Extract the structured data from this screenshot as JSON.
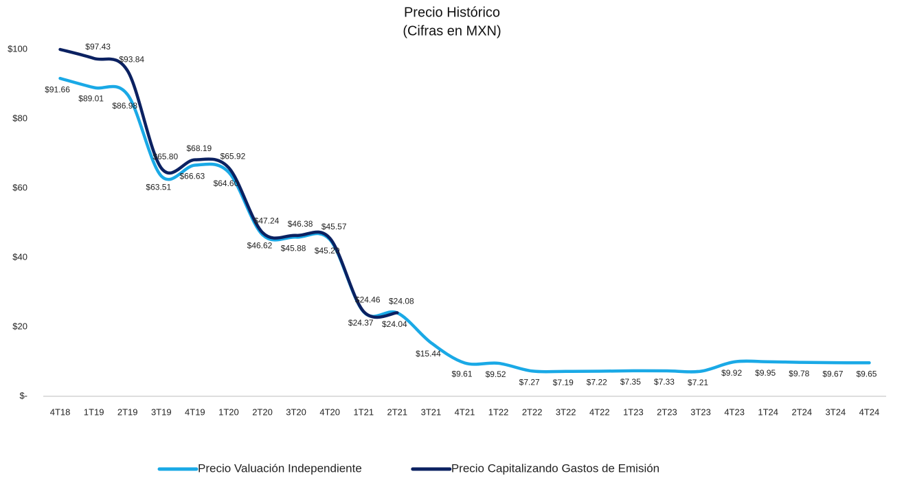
{
  "chart_data": {
    "type": "line",
    "title": "Precio Histórico",
    "subtitle": "(Cifras en MXN)",
    "categories": [
      "4T18",
      "1T19",
      "2T19",
      "3T19",
      "4T19",
      "1T20",
      "2T20",
      "3T20",
      "4T20",
      "1T21",
      "2T21",
      "3T21",
      "4T21",
      "1T22",
      "2T22",
      "3T22",
      "4T22",
      "1T23",
      "2T23",
      "3T23",
      "4T23",
      "1T24",
      "2T24",
      "3T24",
      "4T24"
    ],
    "series": [
      {
        "name": "Precio Valuación Independiente",
        "color": "#1aa9e6",
        "values": [
          91.66,
          89.01,
          86.98,
          63.51,
          66.63,
          64.6,
          46.62,
          45.88,
          45.2,
          24.37,
          24.04,
          15.44,
          9.61,
          9.52,
          7.27,
          7.19,
          7.22,
          7.35,
          7.33,
          7.21,
          9.92,
          9.95,
          9.78,
          9.67,
          9.65
        ],
        "value_labels": [
          "$91.66",
          "$89.01",
          "$86.98",
          "$63.51",
          "$66.63",
          "$64.60",
          "$46.62",
          "$45.88",
          "$45.20",
          "$24.37",
          "$24.04",
          "$15.44",
          "$9.61",
          "$9.52",
          "$7.27",
          "$7.19",
          "$7.22",
          "$7.35",
          "$7.33",
          "$7.21",
          "$9.92",
          "$9.95",
          "$9.78",
          "$9.67",
          "$9.65"
        ]
      },
      {
        "name": "Precio Capitalizando Gastos de Emisión",
        "color": "#0b2161",
        "values": [
          100,
          97.43,
          93.84,
          65.8,
          68.19,
          65.92,
          47.24,
          46.38,
          45.57,
          24.46,
          24.08,
          null,
          null,
          null,
          null,
          null,
          null,
          null,
          null,
          null,
          null,
          null,
          null,
          null,
          null
        ],
        "value_labels": [
          null,
          "$97.43",
          "$93.84",
          "$65.80",
          "$68.19",
          "$65.92",
          "$47.24",
          "$46.38",
          "$45.57",
          "$24.46",
          "$24.08",
          null,
          null,
          null,
          null,
          null,
          null,
          null,
          null,
          null,
          null,
          null,
          null,
          null,
          null
        ]
      }
    ],
    "ylim": [
      0,
      100
    ],
    "yticks": [
      {
        "value": 0,
        "label": "$-"
      },
      {
        "value": 20,
        "label": "$20"
      },
      {
        "value": 40,
        "label": "$40"
      },
      {
        "value": 60,
        "label": "$60"
      },
      {
        "value": 80,
        "label": "$80"
      },
      {
        "value": 100,
        "label": "$100"
      }
    ],
    "grid": false,
    "legend": "bottom"
  }
}
